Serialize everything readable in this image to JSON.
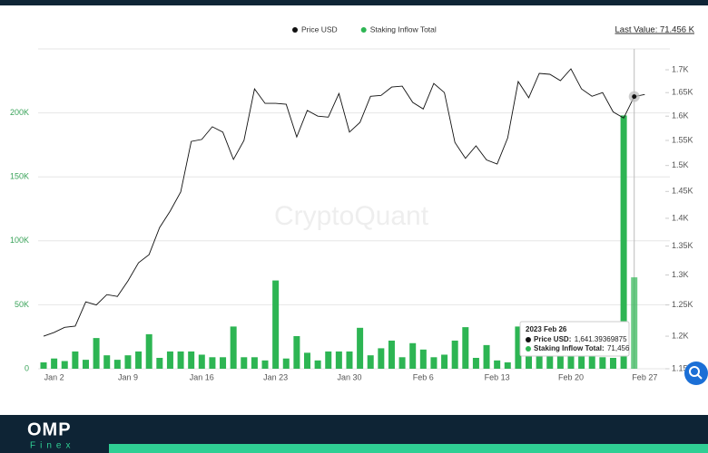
{
  "chart_data": {
    "type": "combo",
    "legend_position": "top",
    "last_value": "Last Value: 71.456 K",
    "watermark": "CryptoQuant",
    "categories": [
      null,
      "Jan 2",
      null,
      null,
      null,
      null,
      null,
      null,
      "Jan 9",
      null,
      null,
      null,
      null,
      null,
      null,
      "Jan 16",
      null,
      null,
      null,
      null,
      null,
      null,
      "Jan 23",
      null,
      null,
      null,
      null,
      null,
      null,
      "Jan 30",
      null,
      null,
      null,
      null,
      null,
      null,
      "Feb 6",
      null,
      null,
      null,
      null,
      null,
      null,
      "Feb 13",
      null,
      null,
      null,
      null,
      null,
      null,
      "Feb 20",
      null,
      null,
      null,
      null,
      null,
      null,
      "Feb 27"
    ],
    "series": [
      {
        "name": "Price USD",
        "type": "line",
        "axis": "y2",
        "color": "#111111",
        "values": [
          1200,
          1206,
          1214,
          1216,
          1255,
          1250,
          1267,
          1264,
          1290,
          1321,
          1335,
          1383,
          1413,
          1449,
          1548,
          1552,
          1578,
          1567,
          1512,
          1550,
          1658,
          1627,
          1627,
          1625,
          1557,
          1612,
          1600,
          1598,
          1648,
          1567,
          1587,
          1642,
          1644,
          1662,
          1664,
          1629,
          1615,
          1670,
          1650,
          1546,
          1514,
          1539,
          1511,
          1503,
          1555,
          1674,
          1639,
          1692,
          1690,
          1676,
          1702,
          1658,
          1642,
          1650,
          1609,
          1596,
          1641.39369875,
          1646
        ]
      },
      {
        "name": "Staking Inflow Total",
        "type": "bar",
        "color": "#2db553",
        "values": [
          5000,
          8000,
          6000,
          13500,
          7000,
          24000,
          10500,
          7000,
          10500,
          13500,
          27000,
          8500,
          13500,
          13500,
          13500,
          11000,
          9000,
          9000,
          33000,
          9000,
          9000,
          6500,
          69000,
          8000,
          25500,
          12500,
          6500,
          13500,
          13500,
          13500,
          32000,
          10500,
          16000,
          22000,
          9000,
          20000,
          15000,
          9000,
          11000,
          22000,
          32500,
          8500,
          18500,
          6500,
          5000,
          33000,
          12000,
          18000,
          14000,
          10000,
          16000,
          11000,
          13000,
          9000,
          8500,
          198000,
          71456,
          null
        ]
      }
    ],
    "ylim": [
      0,
      250000
    ],
    "yticks": [
      0,
      {
        "value": 50000,
        "label": "50K"
      },
      {
        "value": 100000,
        "label": "100K"
      },
      {
        "value": 150000,
        "label": "150K"
      },
      {
        "value": 200000,
        "label": "200K"
      }
    ],
    "y2lim": [
      1150,
      1747
    ],
    "y2log": true,
    "y2ticks": [
      {
        "value": 1150,
        "label": "1.15K"
      },
      {
        "value": 1200,
        "label": "1.2K"
      },
      {
        "value": 1250,
        "label": "1.25K"
      },
      {
        "value": 1300,
        "label": "1.3K"
      },
      {
        "value": 1350,
        "label": "1.35K"
      },
      {
        "value": 1400,
        "label": "1.4K"
      },
      {
        "value": 1450,
        "label": "1.45K"
      },
      {
        "value": 1500,
        "label": "1.5K"
      },
      {
        "value": 1550,
        "label": "1.55K"
      },
      {
        "value": 1600,
        "label": "1.6K"
      },
      {
        "value": 1650,
        "label": "1.65K"
      },
      {
        "value": 1700,
        "label": "1.7K"
      }
    ],
    "grid": true,
    "tooltip": {
      "title": "2023 Feb 26",
      "items": [
        {
          "label": "Price USD",
          "value": "1,641.39369875"
        },
        {
          "label": "Staking Inflow Total",
          "value": "71,456"
        }
      ]
    }
  },
  "brand": {
    "name": "OMP",
    "sub": "Finex"
  }
}
